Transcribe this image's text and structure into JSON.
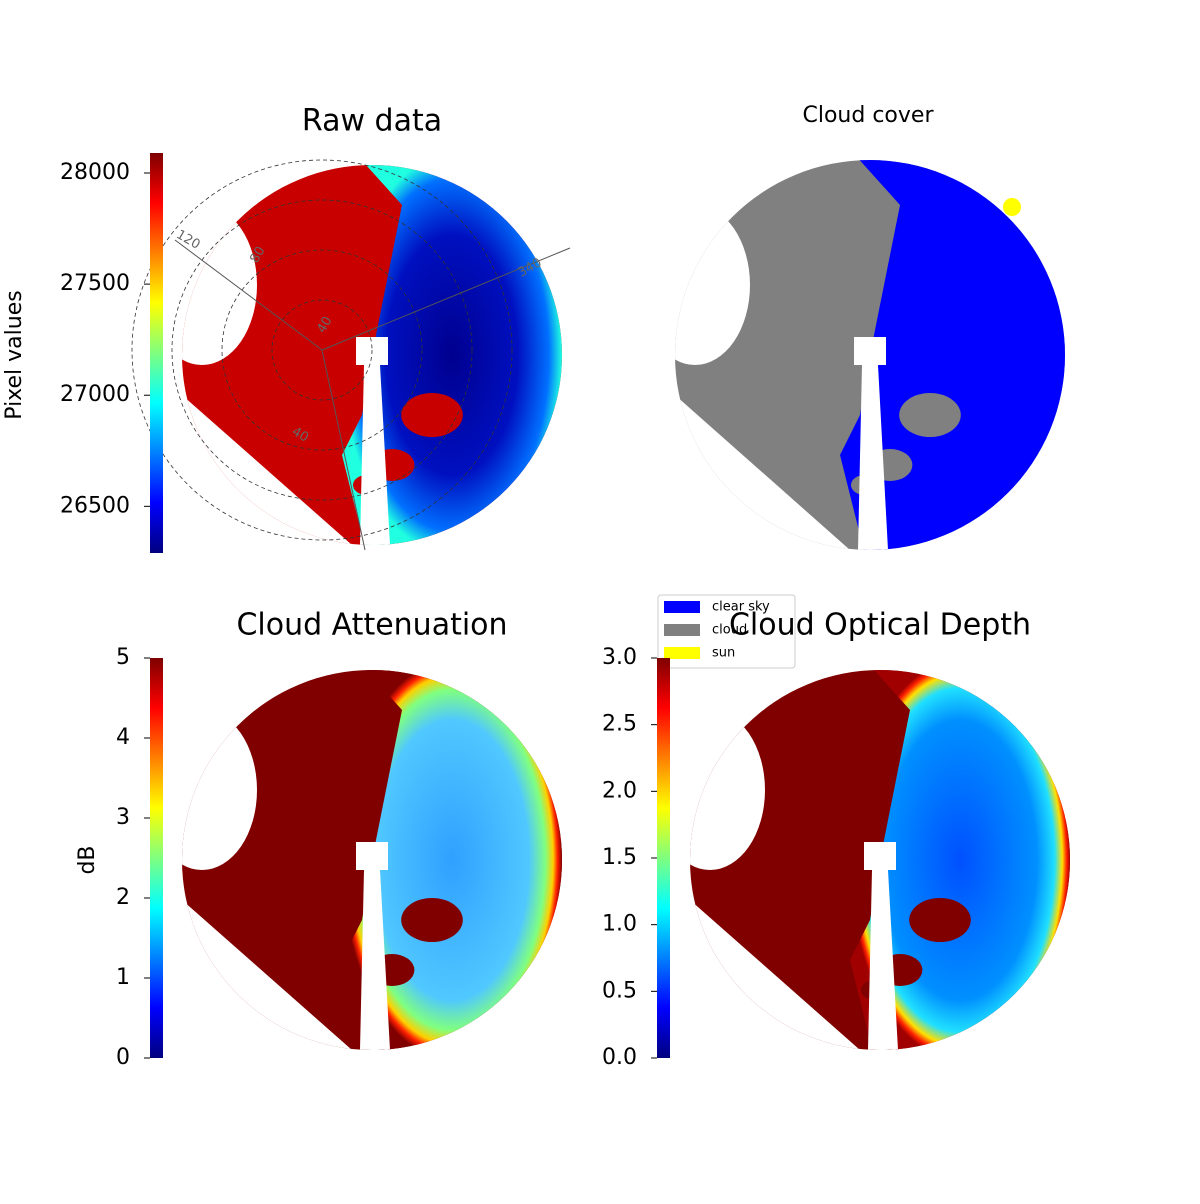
{
  "chart_data": [
    {
      "type": "image",
      "title": "Raw data",
      "colorbar": {
        "label": "Pixel values",
        "lim": [
          26290,
          28090
        ],
        "ticks": [
          26500,
          27000,
          27500,
          28000
        ]
      },
      "polar_labels": [
        "120",
        "340",
        "80",
        "40",
        "40"
      ]
    },
    {
      "type": "image",
      "title": "Cloud cover",
      "series": [
        {
          "name": "clear sky",
          "color": "#0000ff"
        },
        {
          "name": "cloud",
          "color": "#808080"
        },
        {
          "name": "sun",
          "color": "#ffff00"
        }
      ]
    },
    {
      "type": "image",
      "title": "Cloud Attenuation",
      "colorbar": {
        "label": "dB",
        "lim": [
          0,
          5
        ],
        "ticks": [
          0,
          1,
          2,
          3,
          4,
          5
        ]
      }
    },
    {
      "type": "image",
      "title": "Cloud Optical Depth",
      "colorbar": {
        "lim": [
          0,
          3
        ],
        "ticks": [
          {
            "value": 0,
            "label": "0.0"
          },
          0.5,
          {
            "value": 1,
            "label": "1.0"
          },
          1.5,
          {
            "value": 2,
            "label": "2.0"
          },
          2.5,
          {
            "value": 3,
            "label": "3.0"
          }
        ]
      }
    }
  ]
}
